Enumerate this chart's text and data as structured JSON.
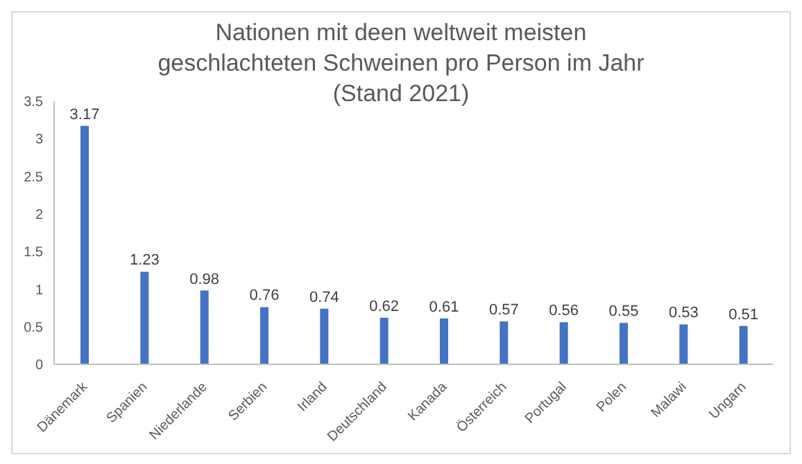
{
  "chart_data": {
    "type": "bar",
    "title": "Nationen mit deen weltweit meisten geschlachteten Schweinen pro Person im Jahr (Stand 2021)",
    "categories": [
      "Dänemark",
      "Spanien",
      "Niederlande",
      "Serbien",
      "Irland",
      "Deutschland",
      "Kanada",
      "Österreich",
      "Portugal",
      "Polen",
      "Malawi",
      "Ungarn"
    ],
    "values": [
      3.17,
      1.23,
      0.98,
      0.76,
      0.74,
      0.62,
      0.61,
      0.57,
      0.56,
      0.55,
      0.53,
      0.51
    ],
    "color": "#4472c4",
    "ylim": [
      0,
      3.5
    ],
    "yticks": [
      0,
      0.5,
      1,
      1.5,
      2,
      2.5,
      3,
      3.5
    ],
    "grid": false,
    "data_labels": true,
    "legend": false
  }
}
